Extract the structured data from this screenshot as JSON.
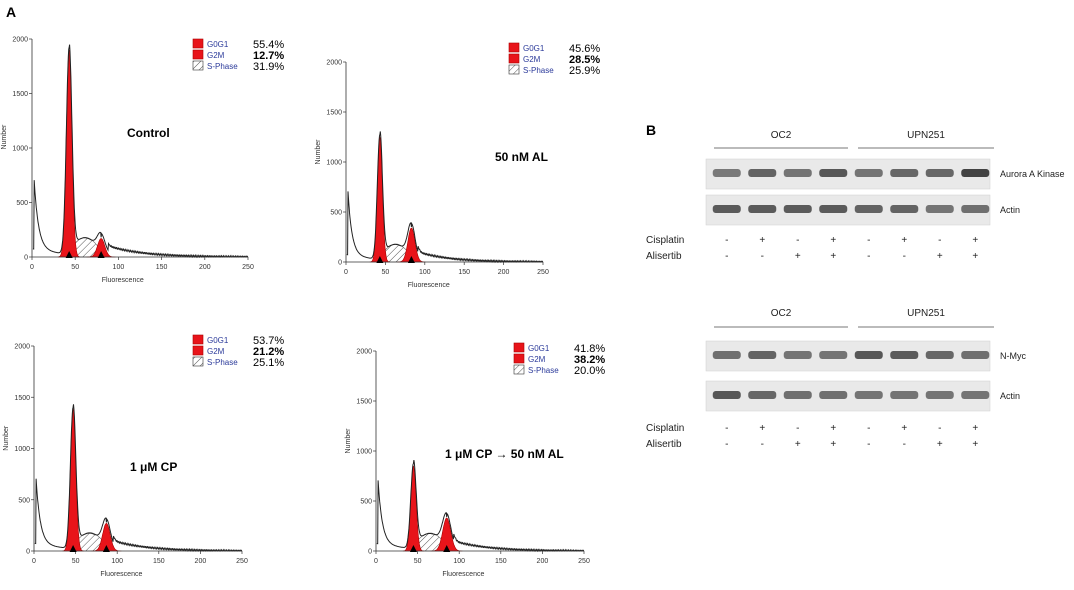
{
  "panel_labels": {
    "a": "A",
    "b": "B"
  },
  "legend_labels": {
    "g0g1": "G0G1",
    "g2m": "G2M",
    "s": "S-Phase"
  },
  "colors": {
    "red": "#e8141a",
    "legend_text": "#2b3a9a",
    "trace": "#222222",
    "band": "#3a3a3a"
  },
  "chart_data": [
    {
      "type": "area",
      "title": "Control",
      "xlabel": "Fluorescence",
      "ylabel": "Number",
      "xlim": [
        0,
        250
      ],
      "ylim": [
        0,
        2000
      ],
      "xticks": [
        0,
        50,
        100,
        150,
        200,
        250
      ],
      "yticks": [
        0,
        500,
        1000,
        1500,
        2000
      ],
      "g1_peak": {
        "pos": 43,
        "height": 1900,
        "width": 3.2
      },
      "g2_peak": {
        "pos": 80,
        "height": 170,
        "width": 4.2
      },
      "markers": [
        43,
        80
      ],
      "legend": [
        {
          "label": "G0G1",
          "value": "55.4%",
          "bold": false
        },
        {
          "label": "G2M",
          "value": "12.7%",
          "bold": true
        },
        {
          "label": "S-Phase",
          "value": "31.9%",
          "bold": false
        }
      ]
    },
    {
      "type": "area",
      "title": "50 nM AL",
      "xlabel": "Fluorescence",
      "ylabel": "Number",
      "xlim": [
        0,
        250
      ],
      "ylim": [
        0,
        2000
      ],
      "xticks": [
        0,
        50,
        100,
        150,
        200,
        250
      ],
      "yticks": [
        0,
        500,
        1000,
        1500,
        2000
      ],
      "g1_peak": {
        "pos": 43,
        "height": 1250,
        "width": 3.2
      },
      "g2_peak": {
        "pos": 83,
        "height": 340,
        "width": 4.5
      },
      "markers": [
        43,
        83
      ],
      "legend": [
        {
          "label": "G0G1",
          "value": "45.6%",
          "bold": false
        },
        {
          "label": "G2M",
          "value": "28.5%",
          "bold": true
        },
        {
          "label": "S-Phase",
          "value": "25.9%",
          "bold": false
        }
      ]
    },
    {
      "type": "area",
      "title": "1 μM CP",
      "xlabel": "Fluorescence",
      "ylabel": "Number",
      "xlim": [
        0,
        250
      ],
      "ylim": [
        0,
        2000
      ],
      "xticks": [
        0,
        50,
        100,
        150,
        200,
        250
      ],
      "yticks": [
        0,
        500,
        1000,
        1500,
        2000
      ],
      "g1_peak": {
        "pos": 47,
        "height": 1380,
        "width": 3.2
      },
      "g2_peak": {
        "pos": 87,
        "height": 270,
        "width": 4.5
      },
      "markers": [
        47,
        87
      ],
      "legend": [
        {
          "label": "G0G1",
          "value": "53.7%",
          "bold": false
        },
        {
          "label": "G2M",
          "value": "21.2%",
          "bold": true
        },
        {
          "label": "S-Phase",
          "value": "25.1%",
          "bold": false
        }
      ]
    },
    {
      "type": "area",
      "title": "1 μM CP → 50 nM AL",
      "xlabel": "Fluorescence",
      "ylabel": "Number",
      "xlim": [
        0,
        250
      ],
      "ylim": [
        0,
        2000
      ],
      "xticks": [
        0,
        50,
        100,
        150,
        200,
        250
      ],
      "yticks": [
        0,
        500,
        1000,
        1500,
        2000
      ],
      "g1_peak": {
        "pos": 45,
        "height": 850,
        "width": 3.2
      },
      "g2_peak": {
        "pos": 85,
        "height": 330,
        "width": 4.8
      },
      "markers": [
        45,
        85
      ],
      "legend": [
        {
          "label": "G0G1",
          "value": "41.8%",
          "bold": false
        },
        {
          "label": "G2M",
          "value": "38.2%",
          "bold": true
        },
        {
          "label": "S-Phase",
          "value": "20.0%",
          "bold": false
        }
      ]
    }
  ],
  "blots": [
    {
      "groups": [
        "OC2",
        "UPN251"
      ],
      "bands": [
        {
          "label": "Aurora A Kinase",
          "intensities": [
            0.55,
            0.75,
            0.6,
            0.85,
            0.6,
            0.7,
            0.7,
            1.0
          ]
        },
        {
          "label": "Actin",
          "intensities": [
            0.8,
            0.8,
            0.8,
            0.8,
            0.75,
            0.75,
            0.6,
            0.65
          ]
        }
      ],
      "treatments": [
        {
          "label": "Cisplatin",
          "signs": [
            "-",
            "+",
            "-",
            "+",
            "-",
            "+",
            "-",
            "+"
          ]
        },
        {
          "label": "Alisertib",
          "signs": [
            "-",
            "-",
            "+",
            "+",
            "-",
            "-",
            "+",
            "+"
          ]
        }
      ]
    },
    {
      "groups": [
        "OC2",
        "UPN251"
      ],
      "bands": [
        {
          "label": "N-Myc",
          "intensities": [
            0.65,
            0.75,
            0.6,
            0.6,
            0.85,
            0.8,
            0.7,
            0.65
          ]
        },
        {
          "label": "Actin",
          "intensities": [
            0.85,
            0.7,
            0.65,
            0.65,
            0.6,
            0.6,
            0.6,
            0.6
          ]
        }
      ],
      "treatments": [
        {
          "label": "Cisplatin",
          "signs": [
            "-",
            "+",
            "-",
            "+",
            "-",
            "+",
            "-",
            "+"
          ]
        },
        {
          "label": "Alisertib",
          "signs": [
            "-",
            "-",
            "+",
            "+",
            "-",
            "-",
            "+",
            "+"
          ]
        }
      ]
    }
  ]
}
